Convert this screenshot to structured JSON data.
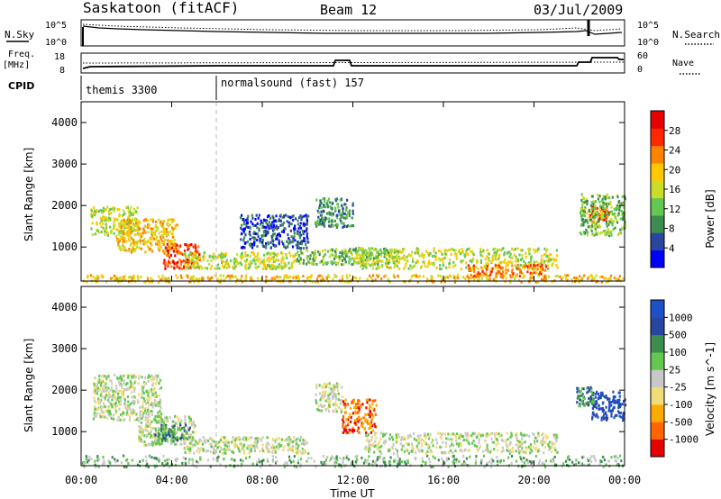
{
  "header": {
    "station": "Saskatoon (fitACF)",
    "beam": "Beam 12",
    "date": "03/Jul/2009"
  },
  "top_panels": {
    "nsky_label": "N.Sky",
    "nsky_ticks": [
      "10^5",
      "10^0"
    ],
    "nsearch_label": "N.Search",
    "nsearch_ticks": [
      "10^5",
      "10^0"
    ],
    "freq_label_line1": "Freq.",
    "freq_label_line2": "[MHz]",
    "freq_ticks": [
      "18",
      "8"
    ],
    "nave_label": "Nave",
    "nave_ticks": [
      "60",
      "0"
    ],
    "cpid_label": "CPID",
    "cpid_segments": [
      {
        "label": "themis 3300",
        "start_hour": 0
      },
      {
        "label": "normalsound (fast) 157",
        "start_hour": 6
      }
    ]
  },
  "chart_data": [
    {
      "type": "heatmap",
      "title": "",
      "xlabel": "",
      "ylabel": "Slant Range [km]",
      "x_range_hours": [
        0,
        24
      ],
      "ylim": [
        180,
        4500
      ],
      "y_ticks": [
        "4000",
        "3000",
        "2000",
        "1000"
      ],
      "colorbar_label": "Power [dB]",
      "colorbar_ticks": [
        "28",
        "24",
        "20",
        "16",
        "12",
        "8",
        "4"
      ],
      "colors": [
        "#0000ff",
        "#2846a0",
        "#3c8c50",
        "#64c850",
        "#c8dc28",
        "#ffc800",
        "#ff8200",
        "#ff2800",
        "#e60000"
      ],
      "regions": [
        {
          "h0": 0.4,
          "h1": 2.5,
          "r0": 1300,
          "r1": 2000,
          "level": 4
        },
        {
          "h0": 1.5,
          "h1": 4.2,
          "r0": 900,
          "r1": 1700,
          "level": 5
        },
        {
          "h0": 3.6,
          "h1": 5.2,
          "r0": 500,
          "r1": 1100,
          "level": 7
        },
        {
          "h0": 4.5,
          "h1": 9.5,
          "r0": 500,
          "r1": 900,
          "level": 4
        },
        {
          "h0": 9.5,
          "h1": 14.0,
          "r0": 600,
          "r1": 1000,
          "level": 3
        },
        {
          "h0": 12.0,
          "h1": 21.0,
          "r0": 500,
          "r1": 1000,
          "level": 4
        },
        {
          "h0": 17.0,
          "h1": 20.5,
          "r0": 300,
          "r1": 600,
          "level": 6
        },
        {
          "h0": 22.4,
          "h1": 23.3,
          "r0": 1600,
          "r1": 2000,
          "level": 7
        },
        {
          "h0": 22.0,
          "h1": 24.0,
          "r0": 1300,
          "r1": 2300,
          "level": 3
        },
        {
          "h0": 0.0,
          "h1": 24.0,
          "r0": 180,
          "r1": 350,
          "level": 5
        },
        {
          "h0": 10.3,
          "h1": 12.0,
          "r0": 1500,
          "r1": 2200,
          "level": 2
        },
        {
          "h0": 7.0,
          "h1": 10.0,
          "r0": 1000,
          "r1": 1800,
          "level": 1
        }
      ]
    },
    {
      "type": "heatmap",
      "title": "",
      "xlabel": "Time UT",
      "ylabel": "Slant Range [km]",
      "x_range_hours": [
        0,
        24
      ],
      "ylim": [
        180,
        4500
      ],
      "x_ticks": [
        "00:00",
        "04:00",
        "08:00",
        "12:00",
        "16:00",
        "20:00",
        "00:00"
      ],
      "y_ticks": [
        "4000",
        "3000",
        "2000",
        "1000"
      ],
      "colorbar_label": "Velocity [m s^-1]",
      "colorbar_ticks": [
        "1000",
        "500",
        "100",
        "25",
        "-25",
        "-100",
        "-500",
        "-1000"
      ],
      "colors": [
        "#e60000",
        "#ff6400",
        "#ffaa00",
        "#f0dc78",
        "#c8c8c8",
        "#64c850",
        "#3c8c50",
        "#2846a0",
        "#1e50c8"
      ],
      "regions": [
        {
          "h0": 0.5,
          "h1": 3.5,
          "r0": 1300,
          "r1": 2400,
          "level": 4
        },
        {
          "h0": 2.5,
          "h1": 5.0,
          "r0": 700,
          "r1": 1400,
          "level": 4
        },
        {
          "h0": 3.2,
          "h1": 4.8,
          "r0": 800,
          "r1": 1200,
          "level": 6
        },
        {
          "h0": 4.5,
          "h1": 10.0,
          "r0": 500,
          "r1": 900,
          "level": 4
        },
        {
          "h0": 0.0,
          "h1": 24.0,
          "r0": 180,
          "r1": 450,
          "level": 5
        },
        {
          "h0": 11.5,
          "h1": 13.0,
          "r0": 1000,
          "r1": 1800,
          "level": 1
        },
        {
          "h0": 12.5,
          "h1": 21.0,
          "r0": 500,
          "r1": 1000,
          "level": 4
        },
        {
          "h0": 22.5,
          "h1": 24.0,
          "r0": 1300,
          "r1": 2000,
          "level": 8
        },
        {
          "h0": 21.8,
          "h1": 22.6,
          "r0": 1600,
          "r1": 2100,
          "level": 6
        },
        {
          "h0": 10.3,
          "h1": 11.5,
          "r0": 1500,
          "r1": 2200,
          "level": 4
        }
      ]
    }
  ]
}
